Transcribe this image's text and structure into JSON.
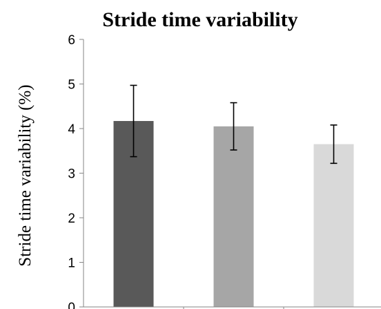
{
  "chart_data": {
    "type": "bar",
    "title": "Stride time variability",
    "xlabel": "",
    "ylabel": "Stride time variability (%)",
    "ylim": [
      0,
      6
    ],
    "yticks": [
      "0",
      "1",
      "2",
      "3",
      "4",
      "5",
      "6"
    ],
    "grid": false,
    "categories": [
      "",
      "",
      ""
    ],
    "values": [
      4.17,
      4.05,
      3.65
    ],
    "error": [
      0.8,
      0.53,
      0.43
    ],
    "colors": [
      "#595959",
      "#a6a6a6",
      "#d9d9d9"
    ],
    "axis_color": "#868686",
    "error_bar_color": "#000000"
  }
}
